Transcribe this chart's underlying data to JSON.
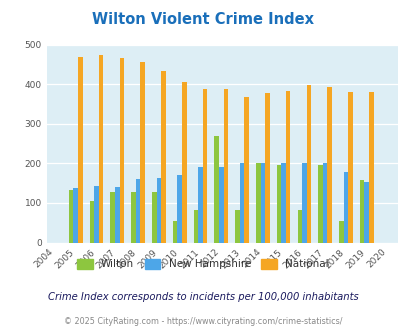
{
  "title": "Wilton Violent Crime Index",
  "years": [
    2004,
    2005,
    2006,
    2007,
    2008,
    2009,
    2010,
    2011,
    2012,
    2013,
    2014,
    2015,
    2016,
    2017,
    2018,
    2019,
    2020
  ],
  "wilton": [
    null,
    133,
    105,
    128,
    128,
    128,
    55,
    82,
    270,
    82,
    200,
    195,
    82,
    197,
    55,
    158,
    null
  ],
  "new_hampshire": [
    null,
    138,
    143,
    140,
    160,
    164,
    170,
    190,
    190,
    202,
    200,
    202,
    200,
    202,
    177,
    152,
    null
  ],
  "national": [
    null,
    469,
    473,
    467,
    455,
    432,
    405,
    388,
    388,
    367,
    378,
    383,
    398,
    394,
    381,
    380,
    null
  ],
  "wilton_color": "#8dc63f",
  "nh_color": "#4da6e8",
  "national_color": "#f5a623",
  "bg_color": "#ddeef5",
  "title_color": "#1a6fba",
  "yticks": [
    0,
    100,
    200,
    300,
    400,
    500
  ],
  "subtitle": "Crime Index corresponds to incidents per 100,000 inhabitants",
  "footer": "© 2025 CityRating.com - https://www.cityrating.com/crime-statistics/",
  "legend_labels": [
    "Wilton",
    "New Hampshire",
    "National"
  ]
}
